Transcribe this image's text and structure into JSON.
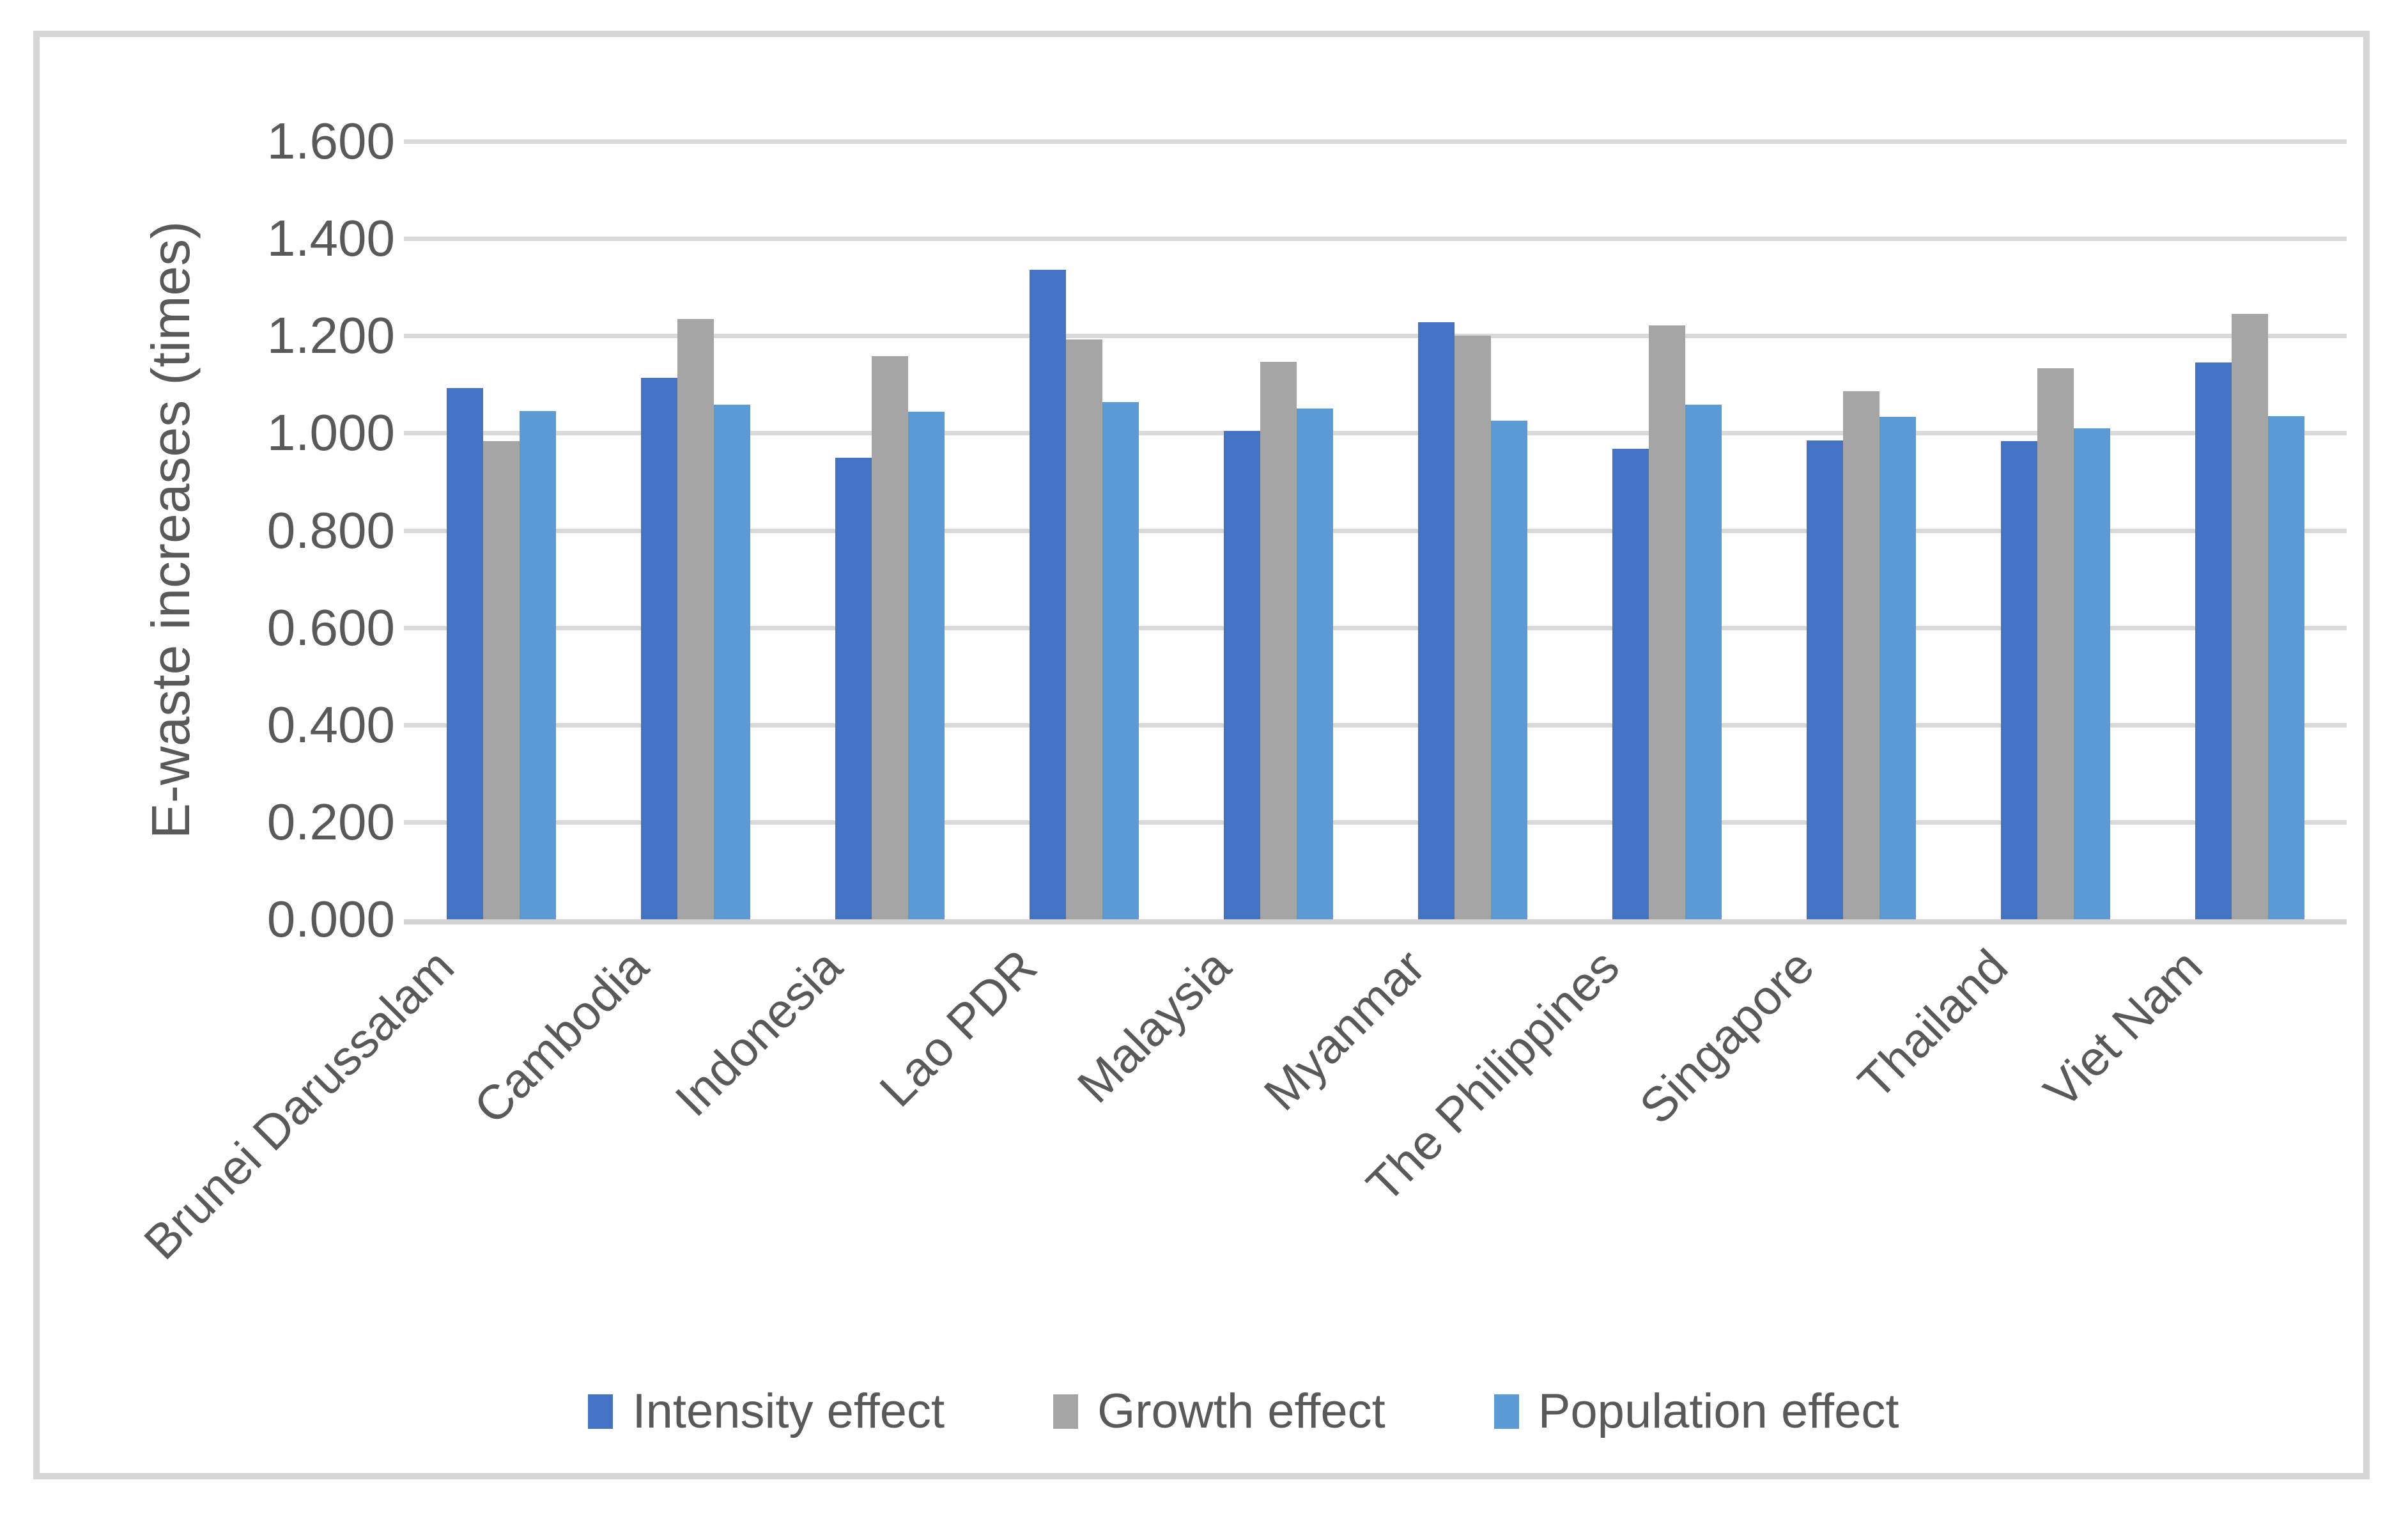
{
  "chart_data": {
    "type": "bar",
    "title": "",
    "xlabel": "",
    "ylabel": "E-waste increases (times)",
    "ylim": [
      0,
      1.6
    ],
    "ytick_step": 0.2,
    "ytick_labels": [
      "0.000",
      "0.200",
      "0.400",
      "0.600",
      "0.800",
      "1.000",
      "1.200",
      "1.400",
      "1.600"
    ],
    "grid": true,
    "legend_position": "bottom-center",
    "categories": [
      "Brunei Darussalam",
      "Cambodia",
      "Indonesia",
      "Lao PDR",
      "Malaysia",
      "Myanmar",
      "The Philippines",
      "Singapore",
      "Thailand",
      "Viet Nam"
    ],
    "series": [
      {
        "name": "Intensity effect",
        "color": "#4472C4",
        "values": [
          1.092,
          1.113,
          0.949,
          1.336,
          1.004,
          1.228,
          0.968,
          0.985,
          0.984,
          1.145
        ]
      },
      {
        "name": "Growth effect",
        "color": "#A5A5A5",
        "values": [
          0.984,
          1.235,
          1.158,
          1.192,
          1.146,
          1.2,
          1.221,
          1.086,
          1.133,
          1.245
        ]
      },
      {
        "name": "Population effect",
        "color": "#5B9BD5",
        "values": [
          1.045,
          1.058,
          1.044,
          1.064,
          1.051,
          1.025,
          1.058,
          1.033,
          1.01,
          1.035
        ]
      }
    ]
  },
  "colors": {
    "background": "#FFFFFF",
    "frame_border": "#D6D6D6",
    "gridline": "#D9D9D9",
    "axis_line": "#D2D2D2",
    "text": "#595959"
  }
}
